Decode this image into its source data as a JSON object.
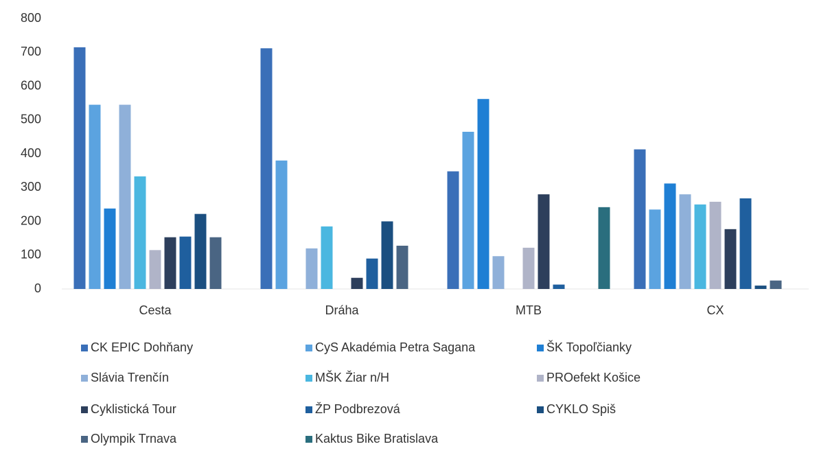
{
  "chart_data": {
    "type": "bar",
    "categories": [
      "Cesta",
      "Dráha",
      "MTB",
      "CX"
    ],
    "series": [
      {
        "name": "CK EPIC Dohňany",
        "color": "#3a6fb8",
        "values": [
          715,
          712,
          348,
          413
        ]
      },
      {
        "name": "CyS Akadémia Petra Sagana",
        "color": "#5ba3e0",
        "values": [
          545,
          380,
          465,
          235
        ]
      },
      {
        "name": "ŠK Topoľčianky",
        "color": "#1f7fd4",
        "values": [
          238,
          0,
          562,
          312
        ]
      },
      {
        "name": "Slávia Trenčín",
        "color": "#8fb0d9",
        "values": [
          545,
          120,
          97,
          280
        ]
      },
      {
        "name": "MŠK Žiar n/H",
        "color": "#4ab7e0",
        "values": [
          333,
          185,
          0,
          250
        ]
      },
      {
        "name": "PROefekt Košice",
        "color": "#b0b4c8",
        "values": [
          115,
          0,
          122,
          258
        ]
      },
      {
        "name": "Cyklistická Tour",
        "color": "#2d3f5c",
        "values": [
          153,
          33,
          280,
          177
        ]
      },
      {
        "name": "ŽP Podbrezová",
        "color": "#1f5f9e",
        "values": [
          155,
          90,
          13,
          268
        ]
      },
      {
        "name": "CYKLO Spiš",
        "color": "#1b4f80",
        "values": [
          222,
          200,
          0,
          10
        ]
      },
      {
        "name": "Olympik Trnava",
        "color": "#4a6583",
        "values": [
          153,
          128,
          0,
          25
        ]
      },
      {
        "name": "Kaktus Bike Bratislava",
        "color": "#2a6e7e",
        "values": [
          0,
          0,
          242,
          0
        ]
      }
    ],
    "ylim": [
      0,
      800
    ],
    "yticks": [
      0,
      100,
      200,
      300,
      400,
      500,
      600,
      700,
      800
    ],
    "grid": false
  }
}
